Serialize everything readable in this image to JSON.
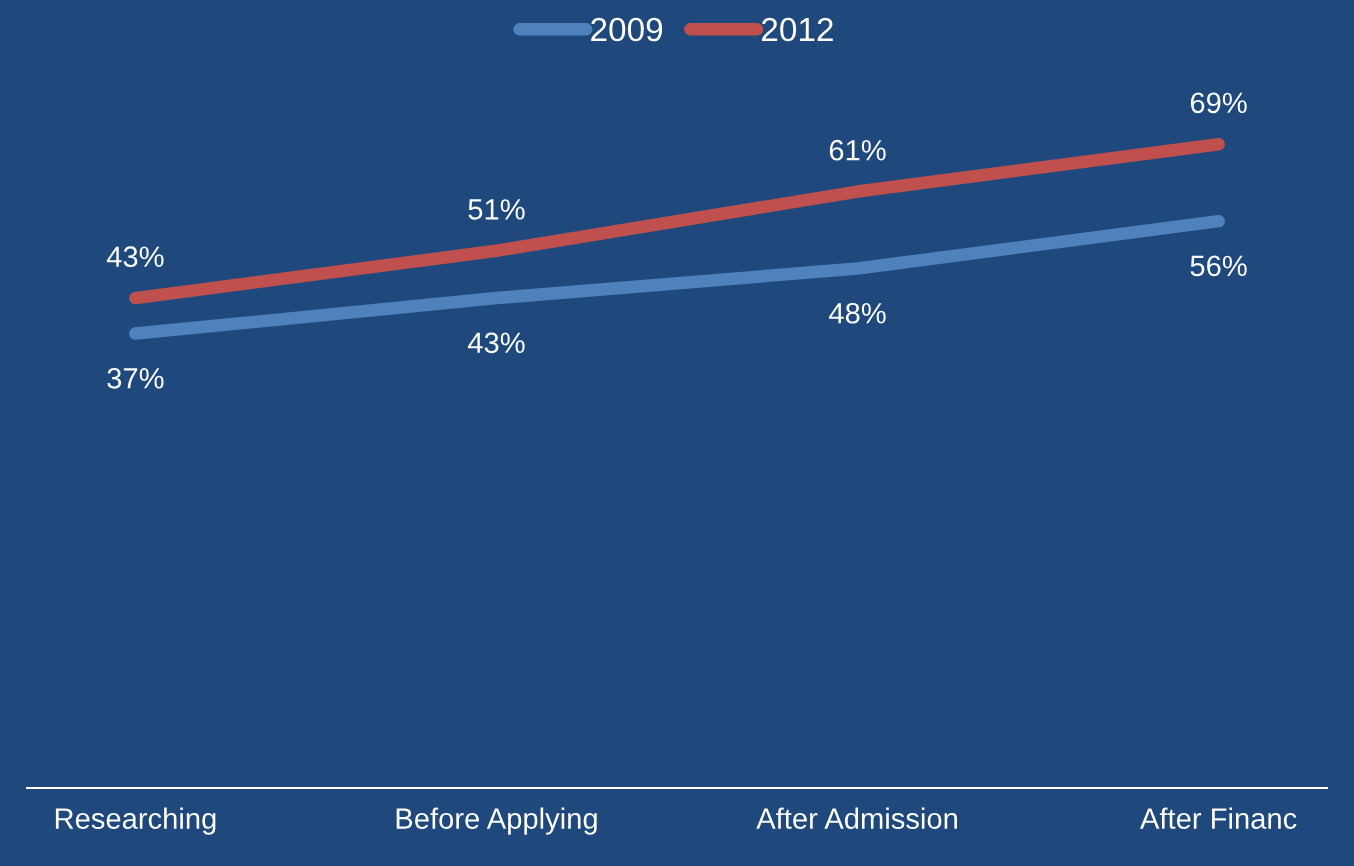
{
  "chart_data": {
    "type": "line",
    "categories": [
      "Researching",
      "Before Applying",
      "After Admission",
      "After Financ"
    ],
    "series": [
      {
        "name": "2009",
        "color": "#4f81bd",
        "values": [
          37,
          43,
          48,
          56
        ],
        "value_labels": [
          "37%",
          "43%",
          "48%",
          "56%"
        ]
      },
      {
        "name": "2012",
        "color": "#c0504d",
        "values": [
          43,
          51,
          61,
          69
        ],
        "value_labels": [
          "43%",
          "51%",
          "61%",
          "69%"
        ]
      }
    ],
    "tick_labels": "x",
    "legend": "top",
    "line_style": "solid"
  }
}
